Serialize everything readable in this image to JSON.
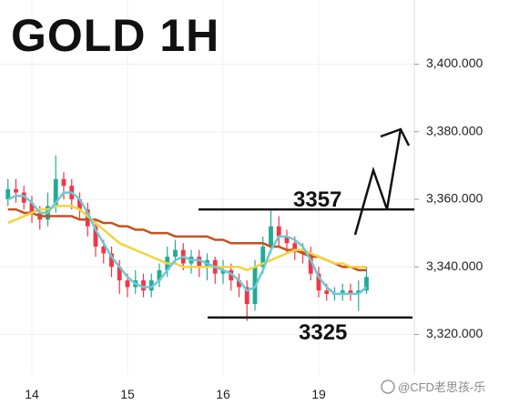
{
  "chart_data": {
    "type": "candlestick",
    "title": "GOLD 1H",
    "x": [
      0,
      1,
      2,
      3,
      4,
      5,
      6,
      7,
      8,
      9,
      10,
      11,
      12,
      13,
      14,
      15,
      16,
      17,
      18,
      19,
      20,
      21,
      22,
      23,
      24,
      25,
      26,
      27,
      28,
      29,
      30,
      31,
      32,
      33,
      34,
      35,
      36,
      37,
      38,
      39,
      40,
      41,
      42,
      43,
      44,
      45
    ],
    "open": [
      3360,
      3363,
      3362,
      3359,
      3356,
      3354,
      3358,
      3366,
      3364,
      3360,
      3357,
      3352,
      3346,
      3344,
      3340,
      3336,
      3334,
      3336,
      3333,
      3336,
      3339,
      3343,
      3345,
      3341,
      3343,
      3340,
      3342,
      3338,
      3339,
      3336,
      3334,
      3329,
      3340,
      3346,
      3352,
      3349,
      3347,
      3345,
      3344,
      3338,
      3333,
      3332,
      3332,
      3333,
      3332,
      3333
    ],
    "high": [
      3366,
      3366,
      3364,
      3361,
      3358,
      3362,
      3373,
      3368,
      3366,
      3362,
      3359,
      3354,
      3348,
      3346,
      3342,
      3338,
      3339,
      3338,
      3338,
      3341,
      3346,
      3348,
      3347,
      3345,
      3345,
      3344,
      3343,
      3342,
      3341,
      3338,
      3336,
      3342,
      3349,
      3357,
      3355,
      3351,
      3349,
      3347,
      3346,
      3340,
      3335,
      3334,
      3335,
      3335,
      3336,
      3340
    ],
    "low": [
      3358,
      3359,
      3357,
      3353,
      3351,
      3352,
      3356,
      3360,
      3357,
      3354,
      3349,
      3343,
      3341,
      3337,
      3332,
      3331,
      3332,
      3331,
      3331,
      3334,
      3337,
      3341,
      3339,
      3338,
      3337,
      3336,
      3335,
      3335,
      3333,
      3331,
      3324,
      3327,
      3338,
      3344,
      3346,
      3344,
      3342,
      3341,
      3336,
      3331,
      3330,
      3330,
      3330,
      3330,
      3327,
      3332
    ],
    "close": [
      3363,
      3362,
      3359,
      3356,
      3354,
      3358,
      3366,
      3364,
      3360,
      3357,
      3352,
      3346,
      3344,
      3340,
      3336,
      3334,
      3336,
      3333,
      3336,
      3339,
      3343,
      3345,
      3341,
      3343,
      3340,
      3342,
      3338,
      3339,
      3336,
      3334,
      3329,
      3340,
      3346,
      3352,
      3349,
      3347,
      3345,
      3344,
      3338,
      3333,
      3332,
      3332,
      3333,
      3332,
      3333,
      3337
    ],
    "up_color": "#22ab94",
    "down_color": "#f23645",
    "lines": [
      {
        "color": "#c8501e",
        "values": [
          3357,
          3357,
          3356,
          3356,
          3355,
          3355,
          3355,
          3355,
          3355,
          3354,
          3354,
          3354,
          3353,
          3353,
          3352,
          3352,
          3351,
          3351,
          3350,
          3350,
          3350,
          3349,
          3349,
          3349,
          3349,
          3349,
          3348,
          3348,
          3347,
          3347,
          3347,
          3347,
          3347,
          3346,
          3346,
          3345,
          3345,
          3344,
          3343,
          3343,
          3342,
          3341,
          3340,
          3340,
          3339,
          3339
        ]
      },
      {
        "color": "#f5d33a",
        "values": [
          3353,
          3354,
          3355,
          3356,
          3357,
          3357,
          3358,
          3358,
          3358,
          3357,
          3355,
          3353,
          3351,
          3349,
          3347,
          3346,
          3345,
          3344,
          3343,
          3342,
          3341,
          3341,
          3340,
          3340,
          3340,
          3340,
          3340,
          3340,
          3340,
          3340,
          3339,
          3340,
          3341,
          3342,
          3343,
          3344,
          3345,
          3345,
          3344,
          3343,
          3342,
          3341,
          3341,
          3340,
          3340,
          3340
        ]
      },
      {
        "color": "#6cc9d6",
        "values": [
          3360,
          3361,
          3361,
          3359,
          3356,
          3356,
          3359,
          3362,
          3362,
          3360,
          3356,
          3351,
          3347,
          3343,
          3340,
          3337,
          3335,
          3334,
          3334,
          3336,
          3339,
          3342,
          3343,
          3342,
          3342,
          3341,
          3340,
          3339,
          3338,
          3336,
          3333,
          3334,
          3339,
          3345,
          3349,
          3349,
          3348,
          3346,
          3342,
          3337,
          3334,
          3332,
          3332,
          3332,
          3332,
          3334
        ]
      }
    ],
    "levels": [
      3357,
      3325
    ],
    "xlim": [
      -1,
      51
    ],
    "xticks": [
      {
        "value": 3,
        "label": "14"
      },
      {
        "value": 15,
        "label": "15"
      },
      {
        "value": 27,
        "label": "16"
      },
      {
        "value": 39,
        "label": "19"
      }
    ],
    "ylim": [
      3308,
      3419
    ],
    "yticks": [
      {
        "value": 3320,
        "label": "3,320.000"
      },
      {
        "value": 3340,
        "label": "3,340.000"
      },
      {
        "value": 3360,
        "label": "3,360.000"
      },
      {
        "value": 3380,
        "label": "3,380.000"
      },
      {
        "value": 3400,
        "label": "3,400.000"
      }
    ],
    "grid": true,
    "watermark": "@CFD老思孩-乐"
  }
}
